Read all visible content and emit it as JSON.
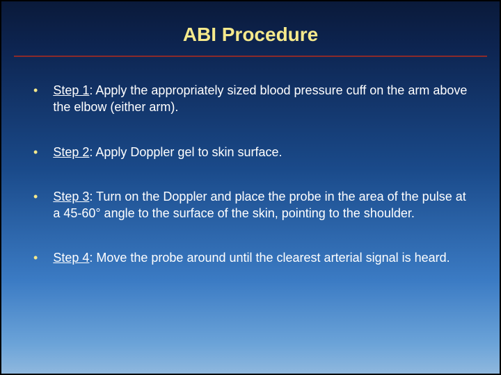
{
  "slide": {
    "title": "ABI Procedure",
    "title_color": "#f5e98c",
    "title_fontsize": 28,
    "divider_color": "#8b2a2a",
    "background_gradient": [
      "#0a1a3a",
      "#0d2450",
      "#1a4a8a",
      "#3b7bc4",
      "#6ba3d8",
      "#8fb8de"
    ],
    "bullet_color": "#f5e98c",
    "text_color": "#ffffff",
    "body_fontsize": 18,
    "steps": [
      {
        "label": "Step 1",
        "text": ": Apply the appropriately sized blood pressure cuff on the arm above the elbow (either arm)."
      },
      {
        "label": "Step 2",
        "text": ": Apply Doppler gel to skin surface."
      },
      {
        "label": "Step 3",
        "text": ": Turn on the Doppler and place the probe in the area of the pulse at a 45-60° angle to the surface of the skin, pointing to the shoulder."
      },
      {
        "label": "Step 4",
        "text": ": Move the probe around until the clearest arterial signal is heard."
      }
    ]
  }
}
